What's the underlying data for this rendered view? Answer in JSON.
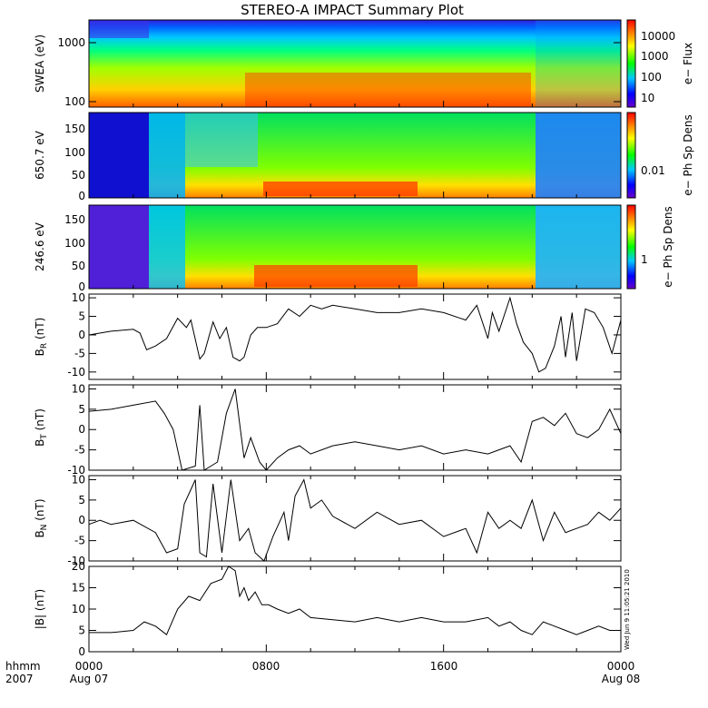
{
  "figure": {
    "title": "STEREO-A IMPACT Summary Plot",
    "side_stamp": "Wed Jun  9 11:05:21 2010",
    "date_label_left": "hhmm",
    "year_label": "2007",
    "start_date": "Aug 07",
    "end_date": "Aug 08"
  },
  "chart_data": [
    {
      "type": "heatmap",
      "ylabel": "SWEA (eV)",
      "y_scale": "log",
      "ylim": [
        90,
        2000
      ],
      "yticks": [
        "100",
        "1000"
      ],
      "colorbar": {
        "label": "e− Flux",
        "scale": "log",
        "ticks": [
          "10",
          "100",
          "1000",
          "10000"
        ]
      },
      "x": [
        "0000",
        "0800",
        "1600",
        "0000"
      ]
    },
    {
      "type": "heatmap",
      "ylabel": "650.7 eV",
      "ylim": [
        0,
        180
      ],
      "yticks": [
        "0",
        "50",
        "100",
        "150"
      ],
      "colorbar": {
        "label": "e− Ph Sp Dens",
        "scale": "log",
        "ticks": [
          "0.01"
        ]
      },
      "x": [
        "0000",
        "0800",
        "1600",
        "0000"
      ]
    },
    {
      "type": "heatmap",
      "ylabel": "246.6 eV",
      "ylim": [
        0,
        180
      ],
      "yticks": [
        "0",
        "50",
        "100",
        "150"
      ],
      "colorbar": {
        "label": "e− Ph Sp Dens",
        "scale": "log",
        "ticks": [
          "1"
        ]
      },
      "x": [
        "0000",
        "0800",
        "1600",
        "0000"
      ]
    },
    {
      "type": "line",
      "ylabel": "B_R (nT)",
      "ylim": [
        -12,
        11
      ],
      "yticks": [
        "-10",
        "-5",
        "0",
        "5",
        "10"
      ],
      "x_hours": [
        0,
        1,
        2,
        2.3,
        2.6,
        3,
        3.5,
        4,
        4.4,
        4.6,
        5,
        5.2,
        5.6,
        5.9,
        6.2,
        6.5,
        6.8,
        7,
        7.3,
        7.6,
        8,
        8.5,
        9,
        9.5,
        10,
        10.5,
        11,
        12,
        13,
        14,
        15,
        16,
        17,
        17.5,
        18,
        18.2,
        18.5,
        19,
        19.3,
        19.6,
        20,
        20.3,
        20.6,
        21,
        21.3,
        21.5,
        21.8,
        22,
        22.4,
        22.8,
        23.2,
        23.6,
        24
      ],
      "values": [
        0,
        1,
        1.5,
        0.5,
        -4,
        -3,
        -1,
        4.5,
        2,
        4,
        -6.5,
        -5,
        3.5,
        -1,
        2,
        -6,
        -7,
        -6,
        0,
        2,
        2,
        3,
        7,
        5,
        8,
        7,
        8,
        7,
        6,
        6,
        7,
        6,
        4,
        8,
        -1,
        6,
        1,
        10,
        3,
        -2,
        -5,
        -10,
        -9,
        -3,
        5,
        -6,
        6,
        -7,
        7,
        6,
        2,
        -5,
        4
      ]
    },
    {
      "type": "line",
      "ylabel": "B_T (nT)",
      "ylim": [
        -10,
        11
      ],
      "yticks": [
        "-10",
        "-5",
        "0",
        "5",
        "10"
      ],
      "x_hours": [
        0,
        1,
        2,
        3,
        3.4,
        3.8,
        4.2,
        4.8,
        5,
        5.2,
        5.5,
        5.8,
        6.2,
        6.6,
        7,
        7.3,
        7.7,
        8,
        8.5,
        9,
        9.5,
        10,
        11,
        12,
        13,
        14,
        15,
        16,
        17,
        18,
        18.5,
        19,
        19.5,
        20,
        20.5,
        21,
        21.5,
        22,
        22.5,
        23,
        23.5,
        24
      ],
      "values": [
        4.5,
        5,
        6,
        7,
        4,
        0,
        -10,
        -9,
        6,
        -10,
        -9,
        -8,
        4,
        10,
        -7,
        -2,
        -8,
        -10,
        -7,
        -5,
        -4,
        -6,
        -4,
        -3,
        -4,
        -5,
        -4,
        -6,
        -5,
        -6,
        -5,
        -4,
        -8,
        2,
        3,
        1,
        4,
        -1,
        -2,
        0,
        5,
        -1
      ]
    },
    {
      "type": "line",
      "ylabel": "B_N (nT)",
      "ylim": [
        -10,
        11
      ],
      "yticks": [
        "-10",
        "-5",
        "0",
        "5",
        "10"
      ],
      "x_hours": [
        0,
        0.5,
        1,
        2,
        3,
        3.5,
        4,
        4.3,
        4.8,
        5,
        5.3,
        5.6,
        6,
        6.4,
        6.8,
        7.2,
        7.5,
        7.9,
        8.3,
        8.8,
        9,
        9.3,
        9.7,
        10,
        10.5,
        11,
        12,
        13,
        14,
        15,
        16,
        17,
        17.5,
        18,
        18.5,
        19,
        19.5,
        20,
        20.5,
        21,
        21.5,
        22,
        22.5,
        23,
        23.5,
        24
      ],
      "values": [
        -1,
        0,
        -1,
        0,
        -3,
        -8,
        -7,
        4,
        10,
        -8,
        -9,
        9,
        -8,
        10,
        -5,
        -2,
        -8,
        -10,
        -4,
        2,
        -5,
        6,
        10,
        3,
        5,
        1,
        -2,
        2,
        -1,
        0,
        -4,
        -2,
        -8,
        2,
        -2,
        0,
        -2,
        5,
        -5,
        2,
        -3,
        -2,
        -1,
        2,
        0,
        3
      ]
    },
    {
      "type": "line",
      "ylabel": "|B| (nT)",
      "ylim": [
        0,
        20
      ],
      "yticks": [
        "0",
        "5",
        "10",
        "15",
        "20"
      ],
      "x_hours": [
        0,
        1,
        2,
        2.5,
        3,
        3.5,
        4,
        4.5,
        5,
        5.5,
        6,
        6.3,
        6.6,
        6.8,
        7,
        7.2,
        7.5,
        7.8,
        8.1,
        8.5,
        9,
        9.5,
        10,
        11,
        12,
        13,
        14,
        15,
        16,
        17,
        18,
        18.5,
        19,
        19.5,
        20,
        20.5,
        21,
        21.5,
        22,
        22.5,
        23,
        23.5,
        24
      ],
      "values": [
        4.5,
        4.5,
        5,
        7,
        6,
        4,
        10,
        13,
        12,
        16,
        17,
        20,
        19,
        13,
        15,
        12,
        14,
        11,
        11,
        10,
        9,
        10,
        8,
        7.5,
        7,
        8,
        7,
        8,
        7,
        7,
        8,
        6,
        7,
        5,
        4,
        7,
        6,
        5,
        4,
        5,
        6,
        5,
        5
      ]
    }
  ],
  "x_axis": {
    "tick_labels": [
      "0000",
      "0800",
      "1600",
      "0000"
    ]
  }
}
